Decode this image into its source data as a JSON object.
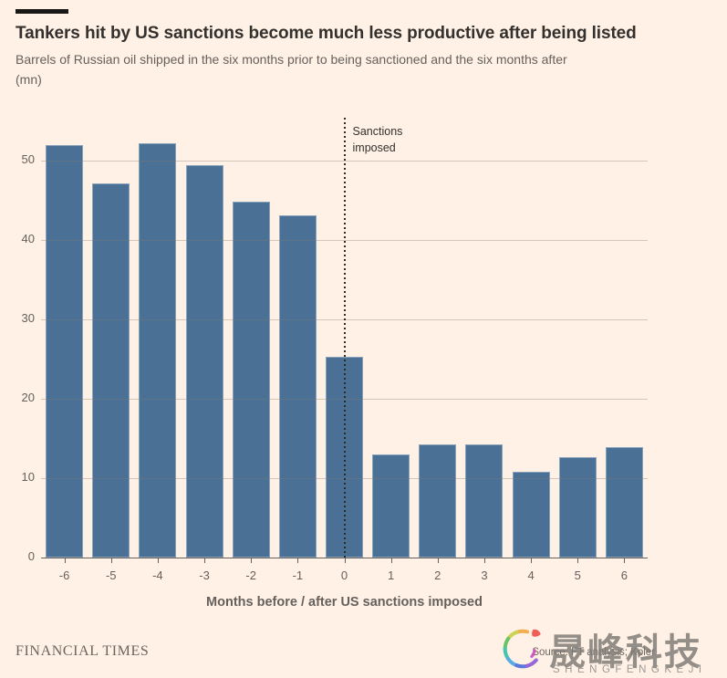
{
  "header": {
    "title": "Tankers hit by US sanctions become much less productive after being listed",
    "subtitle_line1": "Barrels of Russian oil shipped in the six months prior to being sanctioned and the six months after",
    "subtitle_line2": "(mn)"
  },
  "chart_data": {
    "type": "bar",
    "title": "Tankers hit by US sanctions become much less productive after being listed",
    "subtitle": "Barrels of Russian oil shipped in the six months prior to being sanctioned and the six months after (mn)",
    "categories": [
      "-6",
      "-5",
      "-4",
      "-3",
      "-2",
      "-1",
      "0",
      "1",
      "2",
      "3",
      "4",
      "5",
      "6"
    ],
    "values": [
      52,
      47.2,
      52.2,
      49.5,
      44.9,
      43.1,
      25.3,
      13,
      14.3,
      14.3,
      10.8,
      12.7,
      13.9
    ],
    "xlabel": "Months before / after US sanctions imposed",
    "ylabel": "(mn)",
    "ylim": [
      0,
      56
    ],
    "yticks": [
      0,
      10,
      20,
      30,
      40,
      50
    ],
    "grid": true,
    "legend": false,
    "reference_line": {
      "x": "0",
      "label": "Sanctions imposed"
    }
  },
  "colors": {
    "background": "#FFF1E5",
    "bar": "#4A7096",
    "axis_text": "#66605C",
    "title_text": "#33302E",
    "gridline": "rgba(130,120,110,0.35)",
    "reference_line": "#2E2A26"
  },
  "footer": {
    "brand": "FINANCIAL TIMES",
    "source": "Source: FT analysis; Kpler"
  },
  "watermark": {
    "cjk": "晟峰科技",
    "latin": "SHENGFENGKEJI"
  }
}
